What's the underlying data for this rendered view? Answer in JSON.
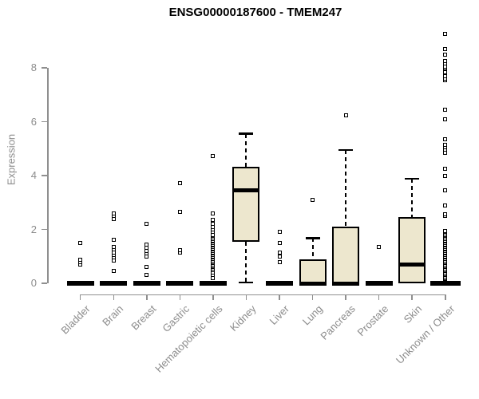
{
  "chart_data": {
    "type": "boxplot",
    "title": "ENSG00000187600 - TMEM247",
    "ylabel": "Expression",
    "xlabel": "",
    "ylim": [
      0,
      9.5
    ],
    "grid": false,
    "legend": "none",
    "yticks": [
      "0",
      "2",
      "4",
      "6",
      "8"
    ],
    "ytick_values": [
      0,
      2,
      4,
      6,
      8
    ],
    "colors": {
      "box_fill": "#ede7ce",
      "box_border": "#000000",
      "outlier_fill": "#ffffff",
      "axis": "#8f8f8f",
      "axis_text": "#8c8c8c",
      "title_text": "#000000"
    },
    "categories": [
      "Bladder",
      "Brain",
      "Breast",
      "Gastric",
      "Hematopoietic cells",
      "Kidney",
      "Liver",
      "Lung",
      "Pancreas",
      "Prostate",
      "Skin",
      "Unknown / Other"
    ],
    "boxes": [
      {
        "category": "Bladder",
        "q1": 0,
        "median": 0,
        "q3": 0,
        "whisker_low": null,
        "whisker_high": null,
        "outliers": [
          0.7,
          0.78,
          0.88,
          1.5
        ]
      },
      {
        "category": "Brain",
        "q1": 0,
        "median": 0,
        "q3": 0,
        "whisker_low": null,
        "whisker_high": null,
        "outliers": [
          0.45,
          0.85,
          0.95,
          1.05,
          1.15,
          1.25,
          1.35,
          1.62,
          2.4,
          2.5,
          2.6
        ]
      },
      {
        "category": "Breast",
        "q1": 0,
        "median": 0,
        "q3": 0,
        "whisker_low": null,
        "whisker_high": null,
        "outliers": [
          0.3,
          0.6,
          1.0,
          1.1,
          1.2,
          1.32,
          1.45,
          2.2
        ]
      },
      {
        "category": "Gastric",
        "q1": 0,
        "median": 0,
        "q3": 0,
        "whisker_low": null,
        "whisker_high": null,
        "outliers": [
          1.15,
          1.22,
          2.65,
          3.72
        ]
      },
      {
        "category": "Hematopoietic cells",
        "q1": 0,
        "median": 0,
        "q3": 0,
        "whisker_low": null,
        "whisker_high": null,
        "outliers": [
          0.2,
          0.3,
          0.4,
          0.5,
          0.55,
          0.6,
          0.65,
          0.7,
          0.75,
          0.8,
          0.85,
          0.9,
          0.95,
          1.0,
          1.05,
          1.1,
          1.15,
          1.2,
          1.25,
          1.3,
          1.35,
          1.4,
          1.45,
          1.5,
          1.55,
          1.6,
          1.65,
          1.7,
          1.75,
          1.8,
          1.9,
          2.0,
          2.1,
          2.2,
          2.35,
          2.58,
          4.72
        ]
      },
      {
        "category": "Kidney",
        "q1": 1.55,
        "median": 3.45,
        "q3": 4.33,
        "whisker_low": 0.03,
        "whisker_high": 5.55,
        "outliers": []
      },
      {
        "category": "Liver",
        "q1": 0,
        "median": 0,
        "q3": 0,
        "whisker_low": null,
        "whisker_high": null,
        "outliers": [
          0.8,
          1.0,
          1.15,
          1.5,
          1.9
        ]
      },
      {
        "category": "Lung",
        "q1": 0,
        "median": 0,
        "q3": 0.88,
        "whisker_low": null,
        "whisker_high": 1.68,
        "outliers": [
          3.1
        ]
      },
      {
        "category": "Pancreas",
        "q1": 0,
        "median": 0,
        "q3": 2.1,
        "whisker_low": null,
        "whisker_high": 4.95,
        "outliers": [
          6.25
        ]
      },
      {
        "category": "Prostate",
        "q1": 0,
        "median": 0,
        "q3": 0,
        "whisker_low": null,
        "whisker_high": null,
        "outliers": [
          1.35
        ]
      },
      {
        "category": "Skin",
        "q1": 0,
        "median": 0.7,
        "q3": 2.47,
        "whisker_low": null,
        "whisker_high": 3.88,
        "outliers": []
      },
      {
        "category": "Unknown / Other",
        "q1": 0,
        "median": 0,
        "q3": 0,
        "whisker_low": null,
        "whisker_high": null,
        "wide": true,
        "outliers": [
          0.15,
          0.2,
          0.25,
          0.3,
          0.35,
          0.4,
          0.45,
          0.5,
          0.55,
          0.6,
          0.65,
          0.7,
          0.75,
          0.8,
          0.85,
          0.9,
          0.95,
          1.0,
          1.05,
          1.1,
          1.15,
          1.2,
          1.25,
          1.3,
          1.35,
          1.4,
          1.45,
          1.5,
          1.55,
          1.6,
          1.65,
          1.7,
          1.75,
          1.8,
          1.85,
          1.9,
          1.95,
          2.5,
          2.55,
          2.9,
          3.45,
          4.0,
          4.25,
          4.85,
          4.95,
          5.05,
          5.15,
          5.35,
          6.1,
          6.45,
          7.55,
          7.6,
          7.7,
          7.8,
          7.85,
          8.0,
          8.05,
          8.15,
          8.25,
          8.5,
          8.7,
          9.25
        ]
      }
    ]
  }
}
